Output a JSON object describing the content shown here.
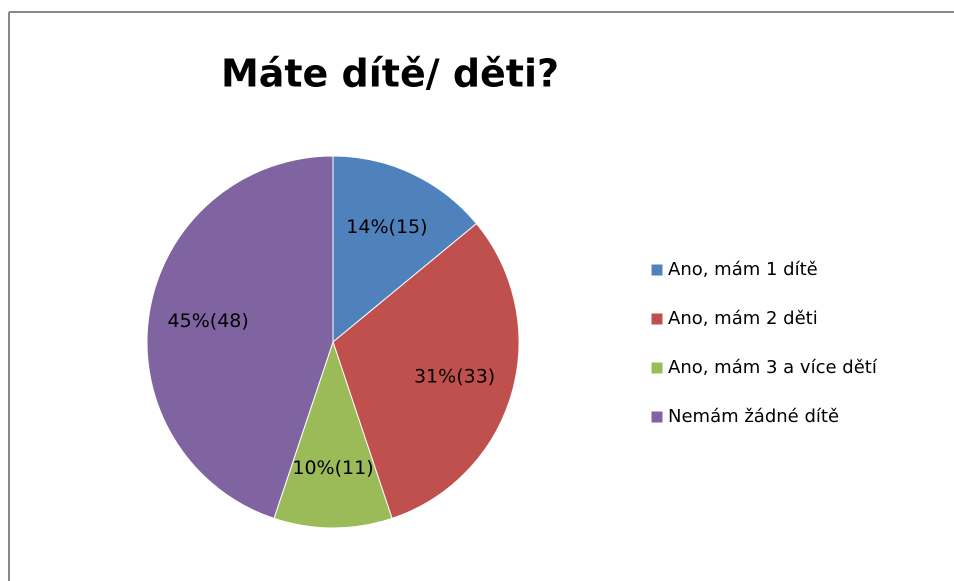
{
  "chart_data": {
    "type": "pie",
    "title": "Máte dítě/ děti?",
    "categories": [
      "Ano, mám 1 dítě",
      "Ano, mám 2 děti",
      "Ano, mám 3 a více dětí",
      "Nemám žádné dítě"
    ],
    "values": [
      15,
      33,
      11,
      48
    ],
    "value_labels": [
      "14%(15)",
      "31%(33)",
      "10%(11)",
      "45%(48)"
    ],
    "colors": [
      "#4f81bd",
      "#c0504d",
      "#9bbb59",
      "#8064a2"
    ],
    "legend": "right"
  }
}
